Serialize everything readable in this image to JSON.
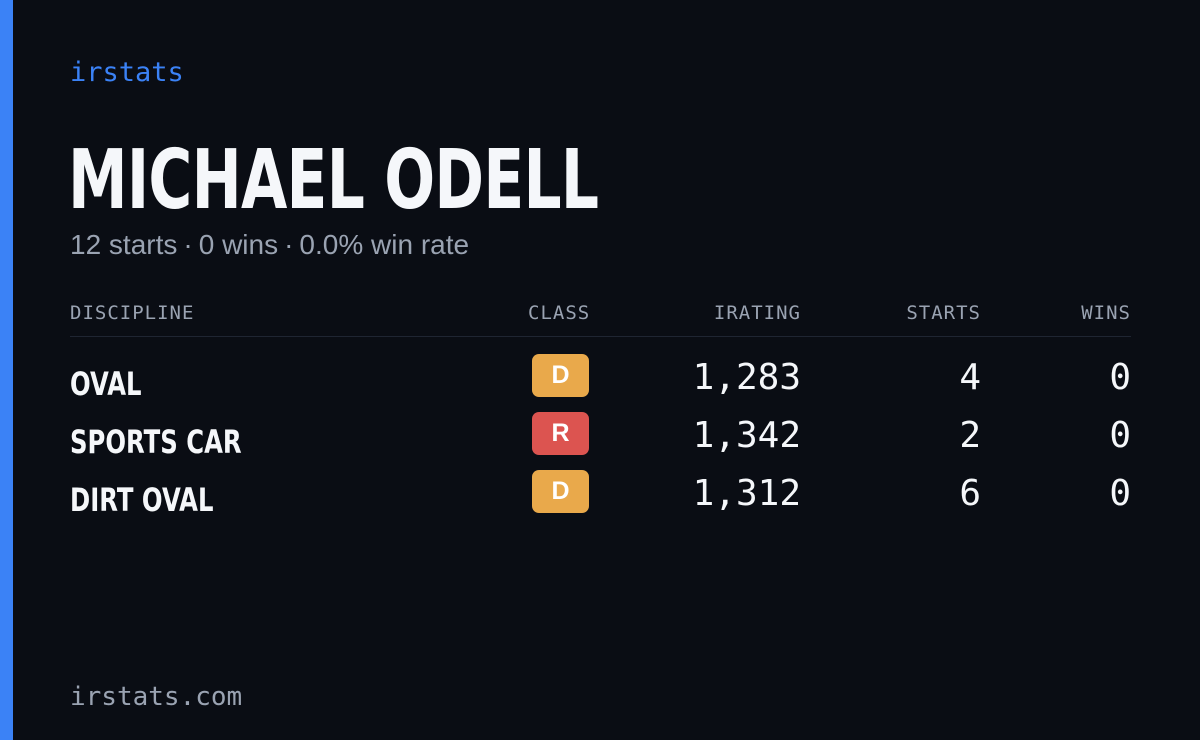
{
  "brand": "irstats",
  "driver": {
    "name": "MICHAEL ODELL",
    "summary": {
      "starts": "12 starts",
      "wins": "0 wins",
      "win_rate": "0.0% win rate",
      "separator": "·"
    }
  },
  "table": {
    "headers": {
      "discipline": "DISCIPLINE",
      "class": "CLASS",
      "irating": "IRATING",
      "starts": "STARTS",
      "wins": "WINS"
    },
    "rows": [
      {
        "discipline": "OVAL",
        "class": "D",
        "class_color": "#e9a94b",
        "irating": "1,283",
        "starts": "4",
        "wins": "0"
      },
      {
        "discipline": "SPORTS CAR",
        "class": "R",
        "class_color": "#dc5450",
        "irating": "1,342",
        "starts": "2",
        "wins": "0"
      },
      {
        "discipline": "DIRT OVAL",
        "class": "D",
        "class_color": "#e9a94b",
        "irating": "1,312",
        "starts": "6",
        "wins": "0"
      }
    ]
  },
  "footer": {
    "url": "irstats.com"
  },
  "colors": {
    "accent": "#3b82f6",
    "background": "#0a0d14",
    "text": "#f5f7fa",
    "muted": "#9aa3b2"
  }
}
